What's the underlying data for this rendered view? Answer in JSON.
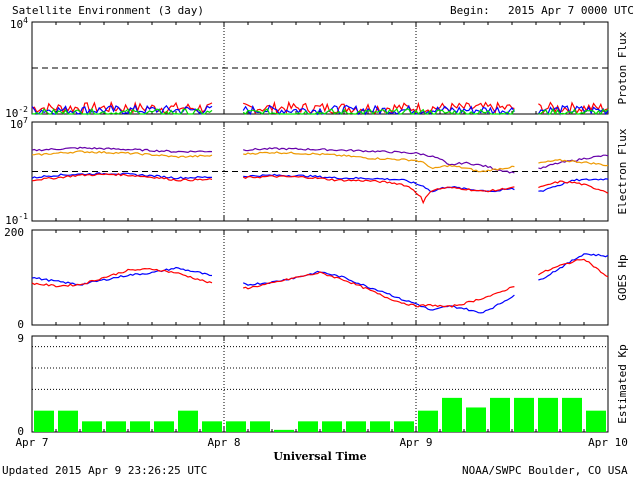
{
  "title": "Satellite Environment (3 day)",
  "begin_label": "Begin:",
  "begin_value": "2015 Apr 7 0000 UTC",
  "xlabel": "Universal Time",
  "x_ticks": [
    "Apr 7",
    "Apr 8",
    "Apr 9",
    "Apr 10"
  ],
  "updated": "Updated 2015 Apr  9 23:26:25 UTC",
  "credit": "NOAA/SWPC Boulder, CO USA",
  "colors": {
    "red": "#ff0000",
    "blue": "#0000ff",
    "green": "#00dd00",
    "orange": "#ee9900",
    "purple": "#6600aa"
  },
  "chart_data": [
    {
      "type": "line",
      "panel": "proton",
      "ylabel": "Proton Flux",
      "y_scale": "log",
      "ylim": [
        0.01,
        10000
      ],
      "y_ticks": [
        {
          "base": "10",
          "exp": "4"
        },
        {
          "base": "10",
          "exp": "-2"
        }
      ],
      "threshold": 10,
      "data_gaps": [
        [
          2.85,
          3.3
        ],
        [
          7.55,
          7.9
        ]
      ],
      "series": [
        {
          "color": "red",
          "level": 0.025,
          "jitter": 0.35
        },
        {
          "color": "blue",
          "level": 0.018,
          "jitter": 0.3
        },
        {
          "color": "green",
          "level": 0.012,
          "jitter": 0.25
        }
      ]
    },
    {
      "type": "line",
      "panel": "electron",
      "ylabel": "Electron Flux",
      "y_scale": "log",
      "ylim": [
        0.1,
        10000000
      ],
      "y_ticks": [
        {
          "base": "10",
          "exp": "7"
        },
        {
          "base": "10",
          "exp": "-1"
        }
      ],
      "threshold": 1000,
      "data_gaps": [
        [
          2.85,
          3.3
        ],
        [
          7.55,
          7.9
        ]
      ],
      "series": [
        {
          "color": "purple",
          "points": [
            [
              0,
              50000
            ],
            [
              6,
              80000
            ],
            [
              12,
              60000
            ],
            [
              18,
              40000
            ],
            [
              24,
              45000
            ],
            [
              30,
              70000
            ],
            [
              36,
              60000
            ],
            [
              42,
              45000
            ],
            [
              48,
              30000
            ],
            [
              52,
              3000
            ],
            [
              54,
              5000
            ],
            [
              58,
              1500
            ],
            [
              60,
              800
            ],
            [
              64,
              2000
            ],
            [
              68,
              8000
            ],
            [
              72,
              20000
            ]
          ]
        },
        {
          "color": "orange",
          "points": [
            [
              0,
              20000
            ],
            [
              6,
              40000
            ],
            [
              12,
              30000
            ],
            [
              18,
              15000
            ],
            [
              24,
              20000
            ],
            [
              30,
              35000
            ],
            [
              36,
              25000
            ],
            [
              42,
              12000
            ],
            [
              48,
              8000
            ],
            [
              50,
              1500
            ],
            [
              52,
              3000
            ],
            [
              56,
              900
            ],
            [
              58,
              1500
            ],
            [
              62,
              3000
            ],
            [
              66,
              8000
            ],
            [
              72,
              3000
            ]
          ]
        },
        {
          "color": "blue",
          "points": [
            [
              0,
              300
            ],
            [
              3,
              500
            ],
            [
              6,
              600
            ],
            [
              10,
              700
            ],
            [
              14,
              500
            ],
            [
              18,
              300
            ],
            [
              22,
              350
            ],
            [
              26,
              400
            ],
            [
              30,
              500
            ],
            [
              34,
              450
            ],
            [
              38,
              300
            ],
            [
              42,
              280
            ],
            [
              46,
              220
            ],
            [
              48,
              100
            ],
            [
              50,
              20
            ],
            [
              52,
              60
            ],
            [
              54,
              40
            ],
            [
              56,
              30
            ],
            [
              58,
              25
            ],
            [
              60,
              40
            ],
            [
              62,
              15
            ],
            [
              64,
              30
            ],
            [
              66,
              80
            ],
            [
              68,
              200
            ],
            [
              72,
              250
            ]
          ]
        },
        {
          "color": "red",
          "points": [
            [
              0,
              200
            ],
            [
              3,
              300
            ],
            [
              6,
              500
            ],
            [
              10,
              600
            ],
            [
              14,
              400
            ],
            [
              18,
              200
            ],
            [
              22,
              220
            ],
            [
              26,
              300
            ],
            [
              30,
              400
            ],
            [
              34,
              350
            ],
            [
              38,
              200
            ],
            [
              42,
              180
            ],
            [
              46,
              100
            ],
            [
              48,
              20
            ],
            [
              49,
              1
            ],
            [
              50,
              30
            ],
            [
              52,
              50
            ],
            [
              54,
              40
            ],
            [
              56,
              25
            ],
            [
              58,
              30
            ],
            [
              60,
              50
            ],
            [
              62,
              40
            ],
            [
              64,
              60
            ],
            [
              66,
              150
            ],
            [
              68,
              120
            ],
            [
              70,
              50
            ],
            [
              72,
              20
            ]
          ]
        }
      ]
    },
    {
      "type": "line",
      "panel": "goes_hp",
      "ylabel": "GOES Hp",
      "ylim": [
        0,
        200
      ],
      "y_ticks": [
        "200",
        "0"
      ],
      "data_gaps": [
        [
          2.85,
          3.3
        ],
        [
          7.55,
          7.9
        ]
      ],
      "series": [
        {
          "color": "blue",
          "points": [
            [
              0,
              100
            ],
            [
              3,
              92
            ],
            [
              6,
              85
            ],
            [
              9,
              95
            ],
            [
              12,
              105
            ],
            [
              15,
              110
            ],
            [
              18,
              120
            ],
            [
              21,
              110
            ],
            [
              24,
              95
            ],
            [
              27,
              85
            ],
            [
              30,
              90
            ],
            [
              33,
              100
            ],
            [
              36,
              112
            ],
            [
              39,
              100
            ],
            [
              42,
              80
            ],
            [
              44,
              70
            ],
            [
              46,
              55
            ],
            [
              48,
              45
            ],
            [
              50,
              30
            ],
            [
              52,
              40
            ],
            [
              54,
              35
            ],
            [
              56,
              25
            ],
            [
              58,
              40
            ],
            [
              60,
              60
            ],
            [
              63,
              90
            ],
            [
              66,
              120
            ],
            [
              69,
              150
            ],
            [
              72,
              145
            ]
          ]
        },
        {
          "color": "red",
          "points": [
            [
              0,
              88
            ],
            [
              3,
              82
            ],
            [
              6,
              85
            ],
            [
              9,
              100
            ],
            [
              12,
              115
            ],
            [
              15,
              118
            ],
            [
              18,
              110
            ],
            [
              21,
              95
            ],
            [
              24,
              80
            ],
            [
              27,
              78
            ],
            [
              30,
              88
            ],
            [
              33,
              100
            ],
            [
              36,
              110
            ],
            [
              39,
              95
            ],
            [
              42,
              75
            ],
            [
              44,
              60
            ],
            [
              46,
              48
            ],
            [
              48,
              40
            ],
            [
              50,
              42
            ],
            [
              52,
              38
            ],
            [
              54,
              45
            ],
            [
              56,
              55
            ],
            [
              58,
              65
            ],
            [
              60,
              80
            ],
            [
              63,
              105
            ],
            [
              66,
              125
            ],
            [
              69,
              140
            ],
            [
              72,
              100
            ]
          ]
        }
      ]
    },
    {
      "type": "bar",
      "panel": "kp",
      "ylabel": "Estimated Kp",
      "ylim": [
        0,
        9
      ],
      "y_ticks": [
        "9",
        "0"
      ],
      "dotted_levels": [
        4,
        6,
        8
      ],
      "categories": [
        "0",
        "3",
        "6",
        "9",
        "12",
        "15",
        "18",
        "21",
        "24",
        "27",
        "30",
        "33",
        "36",
        "39",
        "42",
        "45",
        "48",
        "51",
        "54",
        "57",
        "60",
        "63",
        "66",
        "69"
      ],
      "values": [
        2.0,
        2.0,
        1.0,
        1.0,
        1.0,
        1.0,
        2.0,
        1.0,
        1.0,
        1.0,
        0.2,
        1.0,
        1.0,
        1.0,
        1.0,
        1.0,
        2.0,
        3.2,
        2.3,
        3.2,
        3.2,
        3.2,
        3.2,
        2.0
      ]
    }
  ]
}
